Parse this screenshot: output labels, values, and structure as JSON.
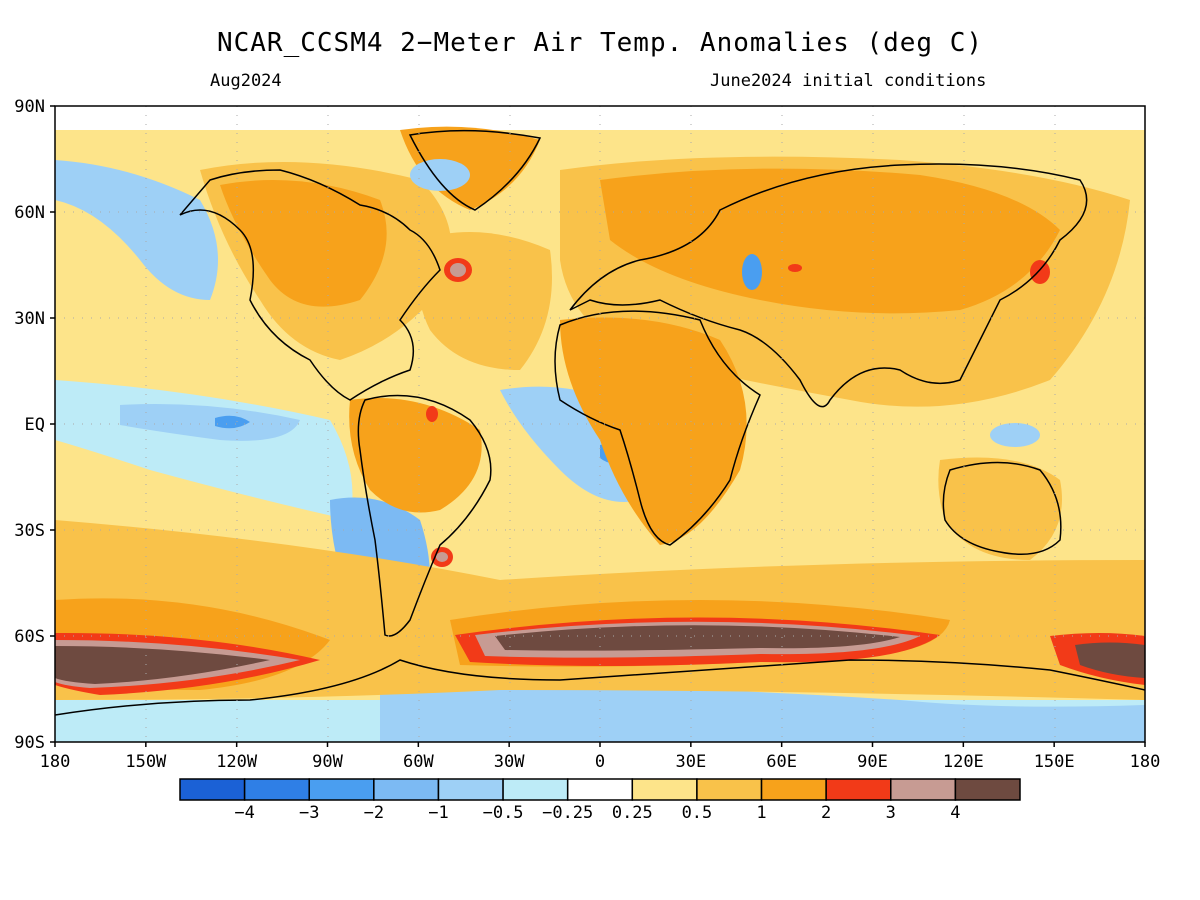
{
  "header": {
    "title": "NCAR_CCSM4 2−Meter Air Temp. Anomalies (deg C)",
    "valid_month": "Aug2024",
    "init_conditions": "June2024 initial conditions"
  },
  "axes": {
    "lat_labels": [
      "90N",
      "60N",
      "30N",
      "EQ",
      "30S",
      "60S",
      "90S"
    ],
    "lon_labels": [
      "180",
      "150W",
      "120W",
      "90W",
      "60W",
      "30W",
      "0",
      "30E",
      "60E",
      "90E",
      "120E",
      "150E",
      "180"
    ]
  },
  "colorbar": {
    "colors": [
      "#1b61d6",
      "#2f7fe6",
      "#4a9ef0",
      "#7cbaf3",
      "#9ed0f6",
      "#bdebf7",
      "#ffffff",
      "#fde48a",
      "#f9c24a",
      "#f7a21b",
      "#f23a18",
      "#c79b93",
      "#6e4a40"
    ],
    "labels": [
      "−4",
      "−3",
      "−2",
      "−1",
      "−0.5",
      "−0.25",
      "0.25",
      "0.5",
      "1",
      "2",
      "3",
      "4"
    ]
  }
}
